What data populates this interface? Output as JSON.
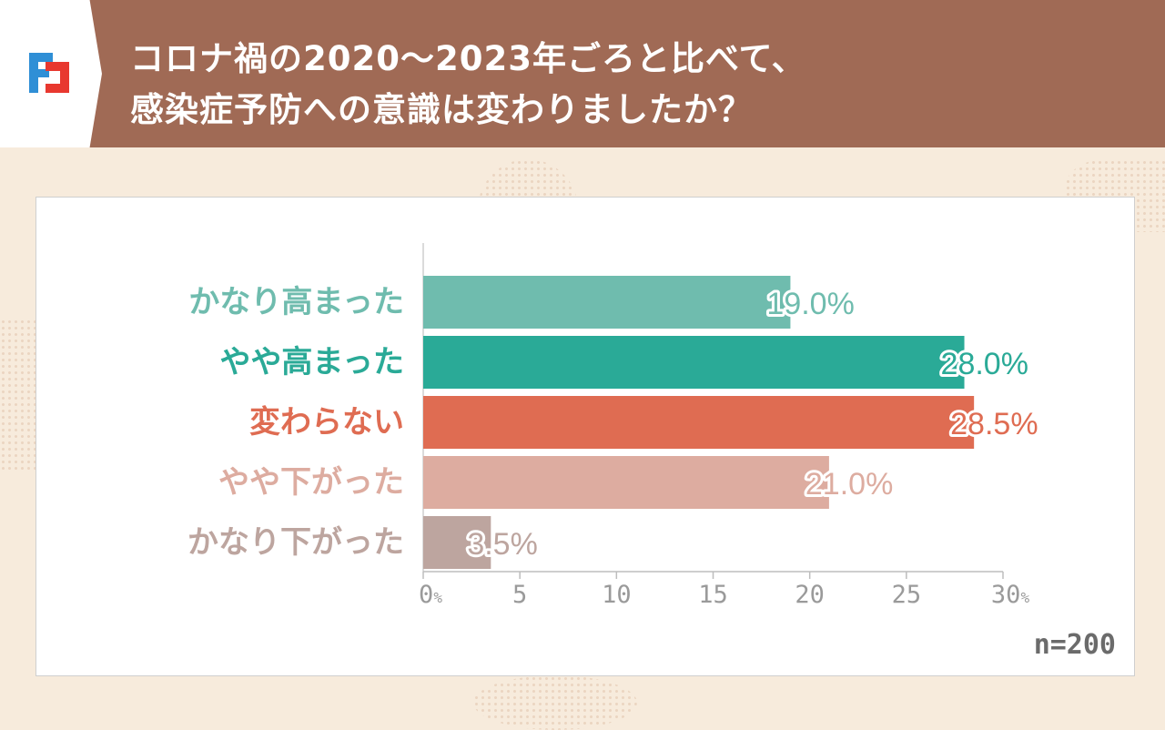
{
  "header": {
    "title_line1": "コロナ禍の2020～2023年ごろと比べて、",
    "title_line2": "感染症予防への意識は変わりましたか？"
  },
  "chart_data": {
    "type": "bar",
    "orientation": "horizontal",
    "categories": [
      "かなり高まった",
      "やや高まった",
      "変わらない",
      "やや下がった",
      "かなり下がった"
    ],
    "values": [
      19.0,
      28.0,
      28.5,
      21.0,
      3.5
    ],
    "value_labels": [
      "19.0%",
      "28.0%",
      "28.5%",
      "21.0%",
      "3.5%"
    ],
    "colors": [
      "#6fbcae",
      "#2aaa97",
      "#df6c52",
      "#ddaca0",
      "#bda59f"
    ],
    "xlim": [
      0,
      30
    ],
    "xticks": [
      0,
      5,
      10,
      15,
      20,
      25,
      30
    ],
    "xtick_labels": [
      "0",
      "5",
      "10",
      "15",
      "20",
      "25",
      "30"
    ],
    "xtick_unit": "%",
    "grid": false,
    "sample_size": "n=200"
  }
}
